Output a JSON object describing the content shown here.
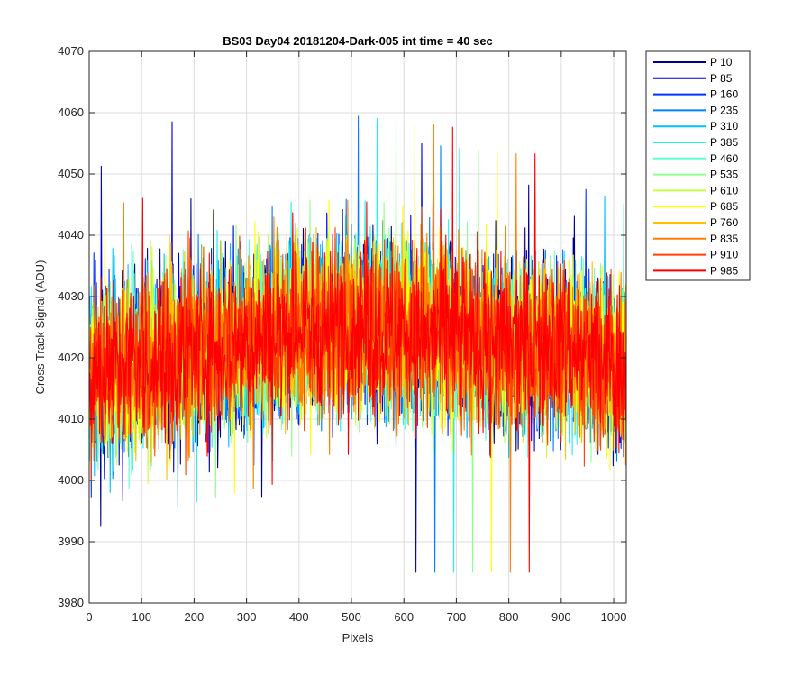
{
  "chart_data": {
    "type": "line",
    "title": "BS03 Day04 20181204-Dark-005 int time = 40 sec",
    "xlabel": "Pixels",
    "ylabel": "Cross Track Signal (ADU)",
    "xlim": [
      0,
      1024
    ],
    "ylim": [
      3980,
      4070
    ],
    "xticks": [
      "0",
      "100",
      "200",
      "300",
      "400",
      "500",
      "600",
      "700",
      "800",
      "900",
      "1000"
    ],
    "yticks": [
      "3980",
      "3990",
      "4000",
      "4010",
      "4020",
      "4030",
      "4040",
      "4050",
      "4060",
      "4070"
    ],
    "grid": true,
    "legend_position": "outside-top-right",
    "noise_center_profile": {
      "x": [
        0,
        100,
        200,
        300,
        400,
        500,
        600,
        700,
        800,
        900,
        1024
      ],
      "y": [
        4017,
        4019,
        4021,
        4023,
        4025,
        4025,
        4024,
        4023,
        4022,
        4022,
        4018
      ]
    },
    "noise_half_range": 15,
    "series": [
      {
        "name": "P 10",
        "color": "#00008f"
      },
      {
        "name": "P 85",
        "color": "#0000df"
      },
      {
        "name": "P 160",
        "color": "#0030ff"
      },
      {
        "name": "P 235",
        "color": "#0080ff"
      },
      {
        "name": "P 310",
        "color": "#00c0ff"
      },
      {
        "name": "P 385",
        "color": "#20f0f0"
      },
      {
        "name": "P 460",
        "color": "#60ffd0"
      },
      {
        "name": "P 535",
        "color": "#90ff90"
      },
      {
        "name": "P 610",
        "color": "#c8ff40"
      },
      {
        "name": "P 685",
        "color": "#ffff00"
      },
      {
        "name": "P 760",
        "color": "#ffc000"
      },
      {
        "name": "P 835",
        "color": "#ff8000"
      },
      {
        "name": "P 910",
        "color": "#ff4000"
      },
      {
        "name": "P 985",
        "color": "#ff0000"
      }
    ]
  }
}
